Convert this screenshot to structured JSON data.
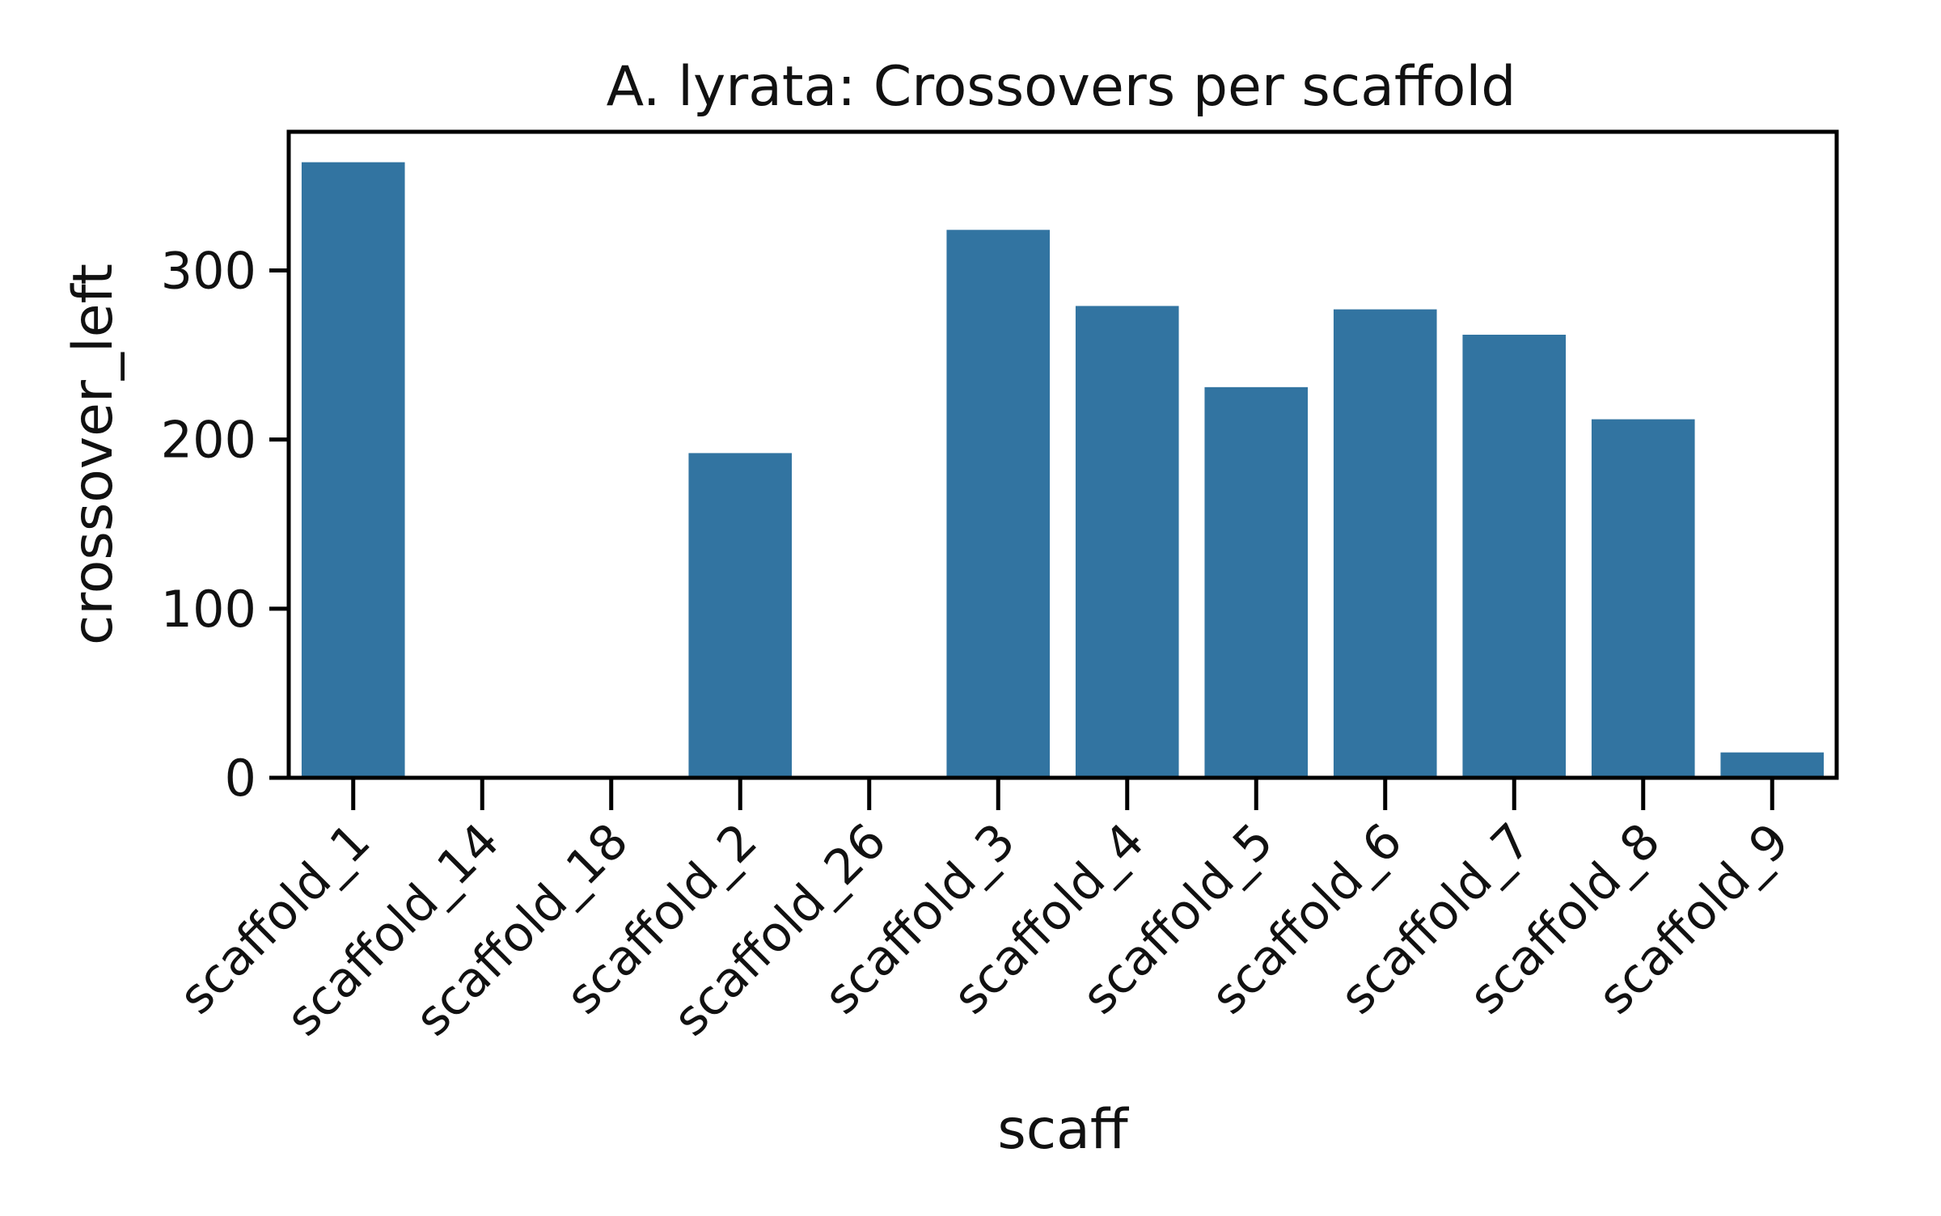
{
  "chart_data": {
    "type": "bar",
    "title": "A. lyrata: Crossovers per scaffold",
    "xlabel": "scaff",
    "ylabel": "crossover_left",
    "categories": [
      "scaffold_1",
      "scaffold_14",
      "scaffold_18",
      "scaffold_2",
      "scaffold_26",
      "scaffold_3",
      "scaffold_4",
      "scaffold_5",
      "scaffold_6",
      "scaffold_7",
      "scaffold_8",
      "scaffold_9"
    ],
    "values": [
      364,
      0,
      0,
      192,
      0,
      324,
      279,
      231,
      277,
      262,
      212,
      15
    ],
    "ylim": [
      0,
      382
    ],
    "yticks": [
      0,
      100,
      200,
      300
    ],
    "ytick_labels": [
      "0",
      "100",
      "200",
      "300"
    ],
    "grid": false,
    "bar_color": "#3274a1"
  }
}
